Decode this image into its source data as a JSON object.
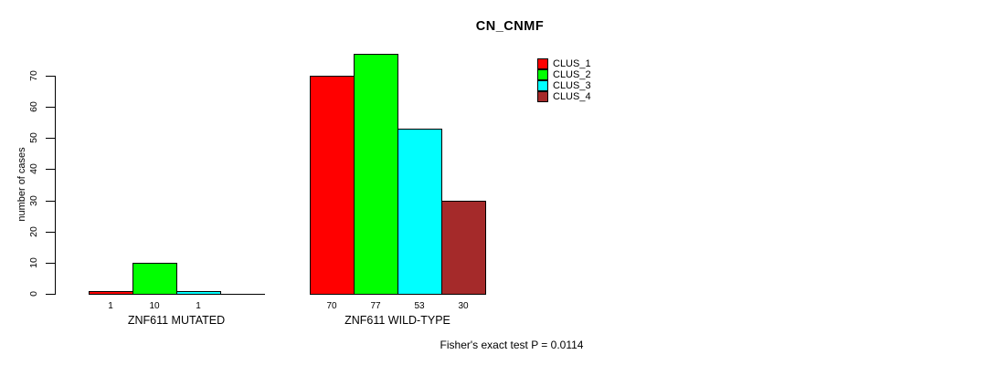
{
  "chart_data": {
    "type": "bar",
    "title": "CN_CNMF",
    "ylabel": "number of cases",
    "ylim": [
      0,
      80
    ],
    "yticks": [
      0,
      10,
      20,
      30,
      40,
      50,
      60,
      70
    ],
    "categories": [
      "ZNF611 MUTATED",
      "ZNF611 WILD-TYPE"
    ],
    "series": [
      {
        "name": "CLUS_1",
        "color": "#ff0000",
        "values": [
          1,
          70
        ]
      },
      {
        "name": "CLUS_2",
        "color": "#00ff00",
        "values": [
          10,
          77
        ]
      },
      {
        "name": "CLUS_3",
        "color": "#00ffff",
        "values": [
          1,
          53
        ]
      },
      {
        "name": "CLUS_4",
        "color": "#a52a2a",
        "values": [
          0,
          30
        ]
      }
    ],
    "bar_value_labels": [
      [
        "1",
        "10",
        "1",
        ""
      ],
      [
        "70",
        "77",
        "53",
        "30"
      ]
    ],
    "legend_position": "top-right",
    "grid": false,
    "annotation": "Fisher's exact test P = 0.0114"
  }
}
